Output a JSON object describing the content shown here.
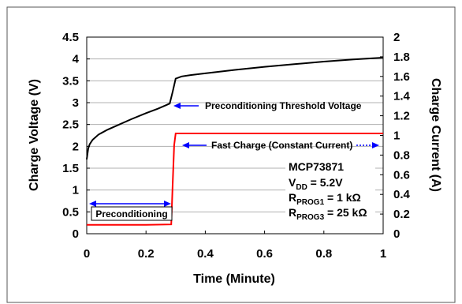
{
  "chart_data": {
    "type": "line",
    "xlabel": "Time (Minute)",
    "ylabel_left": "Charge Voltage (V)",
    "ylabel_right": "Charge Current (A)",
    "xlim": [
      0,
      1
    ],
    "ylim_left": [
      0,
      4.5
    ],
    "ylim_right": [
      0,
      2
    ],
    "x_ticks": [
      "0",
      "0.2",
      "0.4",
      "0.6",
      "0.8",
      "1"
    ],
    "y_ticks_left": [
      "0",
      "0.5",
      "1",
      "1.5",
      "2",
      "2.5",
      "3",
      "3.5",
      "4",
      "4.5"
    ],
    "y_ticks_right": [
      "0",
      "0.2",
      "0.4",
      "0.6",
      "0.8",
      "1",
      "1.2",
      "1.4",
      "1.6",
      "1.8",
      "2"
    ],
    "grid": "horizontal",
    "series": [
      {
        "axis": "left",
        "color": "#000000",
        "points": [
          [
            0,
            1.7
          ],
          [
            0.005,
            1.95
          ],
          [
            0.01,
            2.05
          ],
          [
            0.02,
            2.15
          ],
          [
            0.04,
            2.27
          ],
          [
            0.07,
            2.38
          ],
          [
            0.1,
            2.47
          ],
          [
            0.15,
            2.62
          ],
          [
            0.2,
            2.76
          ],
          [
            0.24,
            2.86
          ],
          [
            0.27,
            2.95
          ],
          [
            0.28,
            2.98
          ],
          [
            0.29,
            3.25
          ],
          [
            0.3,
            3.55
          ],
          [
            0.32,
            3.6
          ],
          [
            0.35,
            3.63
          ],
          [
            0.4,
            3.67
          ],
          [
            0.5,
            3.75
          ],
          [
            0.6,
            3.82
          ],
          [
            0.7,
            3.88
          ],
          [
            0.8,
            3.94
          ],
          [
            0.9,
            3.99
          ],
          [
            1.0,
            4.03
          ]
        ]
      },
      {
        "axis": "right",
        "color": "#ff0000",
        "points": [
          [
            0,
            0.09
          ],
          [
            0.1,
            0.09
          ],
          [
            0.2,
            0.09
          ],
          [
            0.285,
            0.095
          ],
          [
            0.29,
            0.5
          ],
          [
            0.295,
            0.9
          ],
          [
            0.3,
            1.02
          ],
          [
            0.35,
            1.02
          ],
          [
            0.45,
            1.02
          ],
          [
            0.55,
            1.02
          ],
          [
            0.65,
            1.02
          ],
          [
            0.75,
            1.02
          ],
          [
            0.85,
            1.02
          ],
          [
            0.95,
            1.02
          ],
          [
            1.0,
            1.02
          ]
        ]
      }
    ],
    "annotations": {
      "threshold_label": "Preconditioning Threshold Voltage",
      "fast_charge_label": "Fast Charge (Constant Current)",
      "preconditioning_label": "Preconditioning"
    },
    "params": {
      "device": "MCP73871",
      "vdd_main": "V",
      "vdd_sub": "DD",
      "vdd_value": " = 5.2V",
      "r1_main": "R",
      "r1_sub": "PROG1",
      "r1_value": " = 1 kΩ",
      "r3_main": "R",
      "r3_sub": "PROG3",
      "r3_value": " = 25 kΩ"
    },
    "colors": {
      "voltage": "#000000",
      "current": "#ff0000",
      "arrows": "#0000ff",
      "grid": "#b0b0b0"
    }
  }
}
